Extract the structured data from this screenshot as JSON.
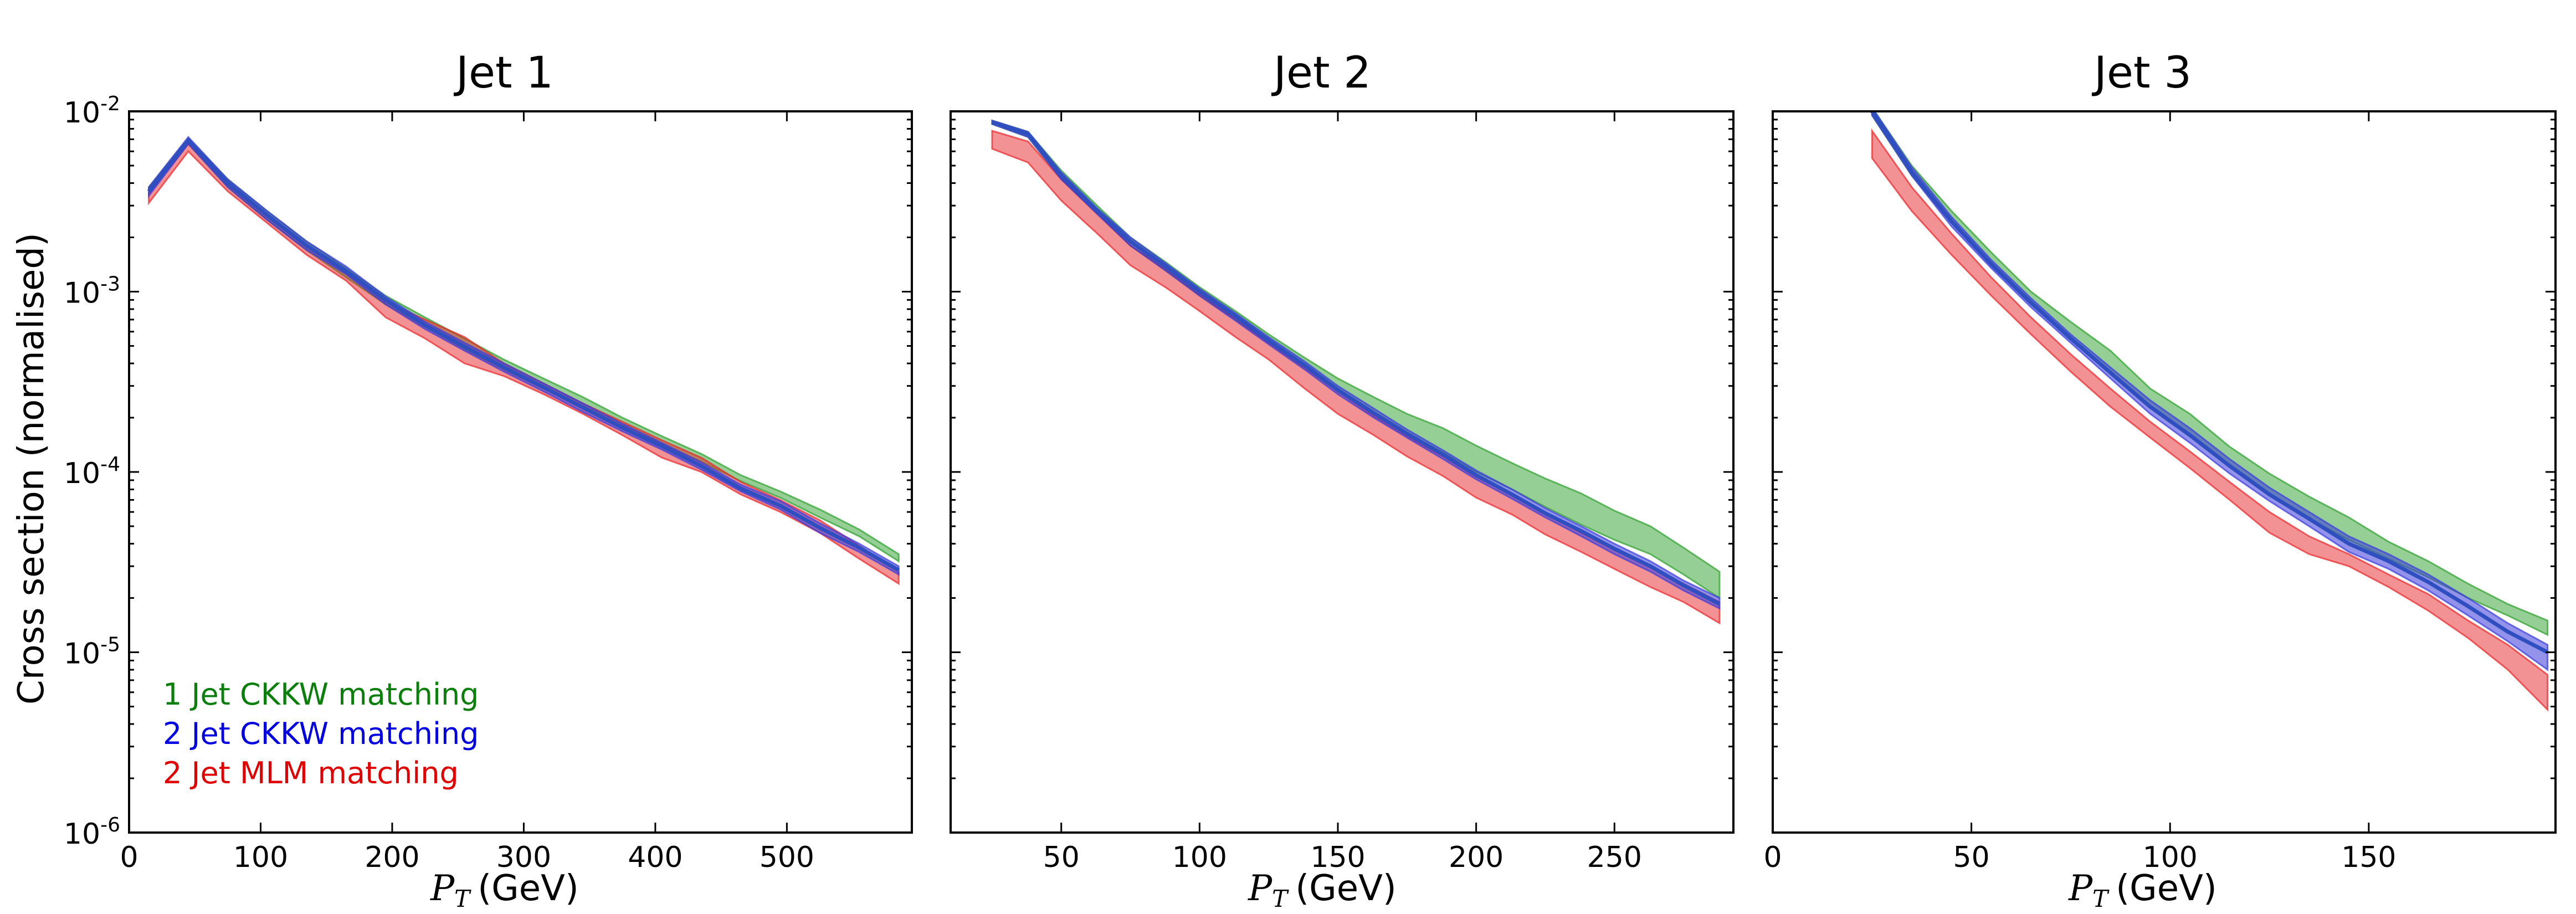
{
  "chart_data": [
    {
      "type": "area",
      "title": "Jet 1",
      "xlabel": "(GeV)",
      "xlabel_var": "P",
      "xlabel_sub": "T",
      "ylabel": "Cross section (normalised)",
      "yscale": "log",
      "xlim": [
        0,
        595
      ],
      "ylim": [
        1e-06,
        0.01
      ],
      "x_ticks": [
        0,
        100,
        200,
        300,
        400,
        500
      ],
      "x_tick_labels": [
        "0",
        "100",
        "200",
        "300",
        "400",
        "500"
      ],
      "y_ticks": [
        1e-06,
        1e-05,
        0.0001,
        0.001,
        0.01
      ],
      "y_tick_labels": [
        {
          "base": "10",
          "exp": "-6"
        },
        {
          "base": "10",
          "exp": "-5"
        },
        {
          "base": "10",
          "exp": "-4"
        },
        {
          "base": "10",
          "exp": "-3"
        },
        {
          "base": "10",
          "exp": "-2"
        }
      ],
      "x": [
        15,
        45,
        75,
        105,
        135,
        165,
        195,
        225,
        255,
        285,
        315,
        345,
        375,
        405,
        435,
        465,
        495,
        525,
        555,
        585
      ],
      "series": [
        {
          "name": "1 Jet CKKW matching",
          "color": "#2ca02c",
          "lower": [
            0.0035,
            0.0066,
            0.0038,
            0.0025,
            0.0017,
            0.0012,
            0.00085,
            0.00064,
            0.00048,
            0.00037,
            0.00029,
            0.00023,
            0.00018,
            0.000142,
            0.000114,
            8.9e-05,
            7.2e-05,
            5.6e-05,
            4.4e-05,
            3.2e-05
          ],
          "upper": [
            0.0038,
            0.0071,
            0.0042,
            0.0028,
            0.0019,
            0.00135,
            0.00095,
            0.00072,
            0.00055,
            0.00042,
            0.00033,
            0.00026,
            0.0002,
            0.000158,
            0.000126,
            9.6e-05,
            7.8e-05,
            6.2e-05,
            4.8e-05,
            3.5e-05
          ]
        },
        {
          "name": "2 Jet CKKW matching",
          "color": "#3a3adc",
          "lower": [
            0.0034,
            0.0066,
            0.0038,
            0.0025,
            0.0017,
            0.00125,
            0.00085,
            0.00062,
            0.00047,
            0.00036,
            0.00028,
            0.000215,
            0.000168,
            0.000133,
            0.000103,
            7.8e-05,
            6.2e-05,
            4.6e-05,
            3.6e-05,
            2.7e-05
          ],
          "upper": [
            0.0038,
            0.0072,
            0.0042,
            0.0028,
            0.0019,
            0.00138,
            0.00094,
            0.00068,
            0.00052,
            0.0004,
            0.00031,
            0.00024,
            0.000185,
            0.000145,
            0.000113,
            8.5e-05,
            6.9e-05,
            5.2e-05,
            4e-05,
            3e-05
          ],
          "line": [
            0.0036,
            0.0069,
            0.004,
            0.00265,
            0.0018,
            0.0013,
            0.0009,
            0.00065,
            0.000495,
            0.00038,
            0.000295,
            0.000228,
            0.000176,
            0.000139,
            0.000108,
            8.1e-05,
            6.5e-05,
            4.9e-05,
            3.8e-05,
            2.85e-05
          ]
        },
        {
          "name": "2 Jet MLM matching",
          "color": "#e8262a",
          "lower": [
            0.0031,
            0.006,
            0.0036,
            0.0024,
            0.0016,
            0.00115,
            0.00072,
            0.00055,
            0.0004,
            0.00034,
            0.00027,
            0.00021,
            0.00016,
            0.00012,
            0.0001,
            7.5e-05,
            6e-05,
            4.6e-05,
            3.3e-05,
            2.4e-05
          ],
          "upper": [
            0.0035,
            0.0066,
            0.004,
            0.0027,
            0.0018,
            0.00128,
            0.00088,
            0.0007,
            0.00056,
            0.0004,
            0.00031,
            0.00024,
            0.00019,
            0.00015,
            0.00012,
            8.8e-05,
            7e-05,
            5.4e-05,
            3.9e-05,
            2.8e-05
          ]
        }
      ],
      "legend": {
        "location": "lower-left",
        "entries": [
          {
            "label": "1 Jet CKKW matching",
            "color": "#0b7f0b"
          },
          {
            "label": "2 Jet CKKW matching",
            "color": "#0000e0"
          },
          {
            "label": "2 Jet MLM matching",
            "color": "#e00000"
          }
        ]
      }
    },
    {
      "type": "area",
      "title": "Jet 2",
      "xlabel": "(GeV)",
      "xlabel_var": "P",
      "xlabel_sub": "T",
      "ylabel": "",
      "yscale": "log",
      "xlim": [
        10,
        293
      ],
      "ylim": [
        1e-06,
        0.01
      ],
      "x_ticks": [
        50,
        100,
        150,
        200,
        250
      ],
      "x_tick_labels": [
        "50",
        "100",
        "150",
        "200",
        "250"
      ],
      "y_ticks": [
        1e-06,
        1e-05,
        0.0001,
        0.001,
        0.01
      ],
      "x": [
        25,
        38,
        50,
        63,
        75,
        88,
        100,
        113,
        125,
        138,
        150,
        163,
        175,
        188,
        200,
        213,
        225,
        238,
        250,
        263,
        275,
        288
      ],
      "series": [
        {
          "name": "1 Jet CKKW matching",
          "color": "#2ca02c",
          "lower": [
            0.0085,
            0.0072,
            0.0042,
            0.0027,
            0.0018,
            0.0013,
            0.00095,
            0.0007,
            0.00052,
            0.00038,
            0.00028,
            0.00021,
            0.000165,
            0.000128,
            0.0001,
            8e-05,
            6.4e-05,
            5.1e-05,
            4.2e-05,
            3.5e-05,
            2.7e-05,
            2e-05
          ],
          "upper": [
            0.0089,
            0.0077,
            0.0047,
            0.003,
            0.002,
            0.00145,
            0.00106,
            0.00078,
            0.00058,
            0.00043,
            0.00033,
            0.00026,
            0.00021,
            0.000175,
            0.00014,
            0.000112,
            9.2e-05,
            7.6e-05,
            6.1e-05,
            5e-05,
            3.8e-05,
            2.8e-05
          ]
        },
        {
          "name": "2 Jet CKKW matching",
          "color": "#3a3adc",
          "lower": [
            0.0085,
            0.0072,
            0.0042,
            0.0027,
            0.0018,
            0.0013,
            0.00095,
            0.00069,
            0.00051,
            0.00037,
            0.00027,
            0.0002,
            0.000155,
            0.000118,
            9.1e-05,
            7.1e-05,
            5.6e-05,
            4.4e-05,
            3.5e-05,
            2.8e-05,
            2.2e-05,
            1.75e-05
          ],
          "upper": [
            0.0089,
            0.0077,
            0.0046,
            0.0029,
            0.002,
            0.00143,
            0.00104,
            0.00076,
            0.00056,
            0.00041,
            0.0003,
            0.000225,
            0.000172,
            0.000132,
            0.000102,
            8e-05,
            6.3e-05,
            5e-05,
            4e-05,
            3.2e-05,
            2.5e-05,
            2e-05
          ],
          "line": [
            0.0087,
            0.0075,
            0.0044,
            0.0028,
            0.0019,
            0.00137,
            0.001,
            0.00073,
            0.000535,
            0.00039,
            0.000285,
            0.000212,
            0.000163,
            0.000125,
            9.6e-05,
            7.5e-05,
            5.9e-05,
            4.7e-05,
            3.75e-05,
            3e-05,
            2.35e-05,
            1.85e-05
          ]
        },
        {
          "name": "2 Jet MLM matching",
          "color": "#e8262a",
          "lower": [
            0.0062,
            0.0052,
            0.0032,
            0.0021,
            0.0014,
            0.00105,
            0.00078,
            0.00056,
            0.00042,
            0.00029,
            0.00021,
            0.00016,
            0.000122,
            9.5e-05,
            7.2e-05,
            5.8e-05,
            4.5e-05,
            3.6e-05,
            2.9e-05,
            2.3e-05,
            1.9e-05,
            1.45e-05
          ],
          "upper": [
            0.0078,
            0.0068,
            0.0042,
            0.0027,
            0.0018,
            0.00133,
            0.00097,
            0.00071,
            0.00052,
            0.00038,
            0.00028,
            0.000205,
            0.000158,
            0.000122,
            9.4e-05,
            7.5e-05,
            5.9e-05,
            4.6e-05,
            3.7e-05,
            3e-05,
            2.4e-05,
            1.9e-05
          ]
        }
      ]
    },
    {
      "type": "area",
      "title": "Jet 3",
      "xlabel": "(GeV)",
      "xlabel_var": "P",
      "xlabel_sub": "T",
      "ylabel": "",
      "yscale": "log",
      "xlim": [
        0,
        197
      ],
      "ylim": [
        1e-06,
        0.01
      ],
      "x_ticks": [
        0,
        50,
        100,
        150
      ],
      "x_tick_labels": [
        "0",
        "50",
        "100",
        "150"
      ],
      "y_ticks": [
        1e-06,
        1e-05,
        0.0001,
        0.001,
        0.01
      ],
      "x": [
        25,
        35,
        45,
        55,
        65,
        75,
        85,
        95,
        105,
        115,
        125,
        135,
        145,
        155,
        165,
        175,
        185,
        195
      ],
      "series": [
        {
          "name": "1 Jet CKKW matching",
          "color": "#2ca02c",
          "lower": [
            0.0095,
            0.0044,
            0.0024,
            0.0014,
            0.00085,
            0.00055,
            0.00035,
            0.00023,
            0.00016,
            0.000108,
            7.6e-05,
            5.5e-05,
            4.2e-05,
            3.3e-05,
            2.6e-05,
            2e-05,
            1.6e-05,
            1.25e-05
          ],
          "upper": [
            0.0105,
            0.005,
            0.0028,
            0.00165,
            0.001,
            0.00068,
            0.00047,
            0.00029,
            0.00021,
            0.000138,
            9.8e-05,
            7.3e-05,
            5.6e-05,
            4.1e-05,
            3.2e-05,
            2.4e-05,
            1.85e-05,
            1.5e-05
          ]
        },
        {
          "name": "2 Jet CKKW matching",
          "color": "#3a3adc",
          "lower": [
            0.0095,
            0.0044,
            0.0023,
            0.00135,
            0.00082,
            0.00052,
            0.00033,
            0.00021,
            0.000145,
            9.8e-05,
            6.9e-05,
            5e-05,
            3.6e-05,
            2.9e-05,
            2.2e-05,
            1.6e-05,
            1.15e-05,
            8e-06
          ],
          "upper": [
            0.0105,
            0.0049,
            0.0026,
            0.0015,
            0.00092,
            0.00058,
            0.00038,
            0.00025,
            0.000175,
            0.000118,
            8.2e-05,
            6e-05,
            4.4e-05,
            3.5e-05,
            2.7e-05,
            2e-05,
            1.45e-05,
            1.1e-05
          ],
          "line": [
            0.01,
            0.0046,
            0.00245,
            0.00142,
            0.00087,
            0.00055,
            0.000355,
            0.00023,
            0.00016,
            0.000108,
            7.5e-05,
            5.5e-05,
            4e-05,
            3.2e-05,
            2.45e-05,
            1.8e-05,
            1.3e-05,
            1e-05
          ]
        },
        {
          "name": "2 Jet MLM matching",
          "color": "#e8262a",
          "lower": [
            0.0055,
            0.0028,
            0.0016,
            0.00095,
            0.00058,
            0.00036,
            0.00023,
            0.000155,
            0.000105,
            7e-05,
            4.6e-05,
            3.5e-05,
            3e-05,
            2.3e-05,
            1.7e-05,
            1.2e-05,
            8e-06,
            4.8e-06
          ],
          "upper": [
            0.0078,
            0.0038,
            0.0021,
            0.0012,
            0.00072,
            0.00045,
            0.00029,
            0.00019,
            0.00013,
            8.8e-05,
            6e-05,
            4.4e-05,
            3.5e-05,
            2.7e-05,
            2.1e-05,
            1.5e-05,
            1.1e-05,
            7.5e-06
          ]
        }
      ]
    }
  ]
}
